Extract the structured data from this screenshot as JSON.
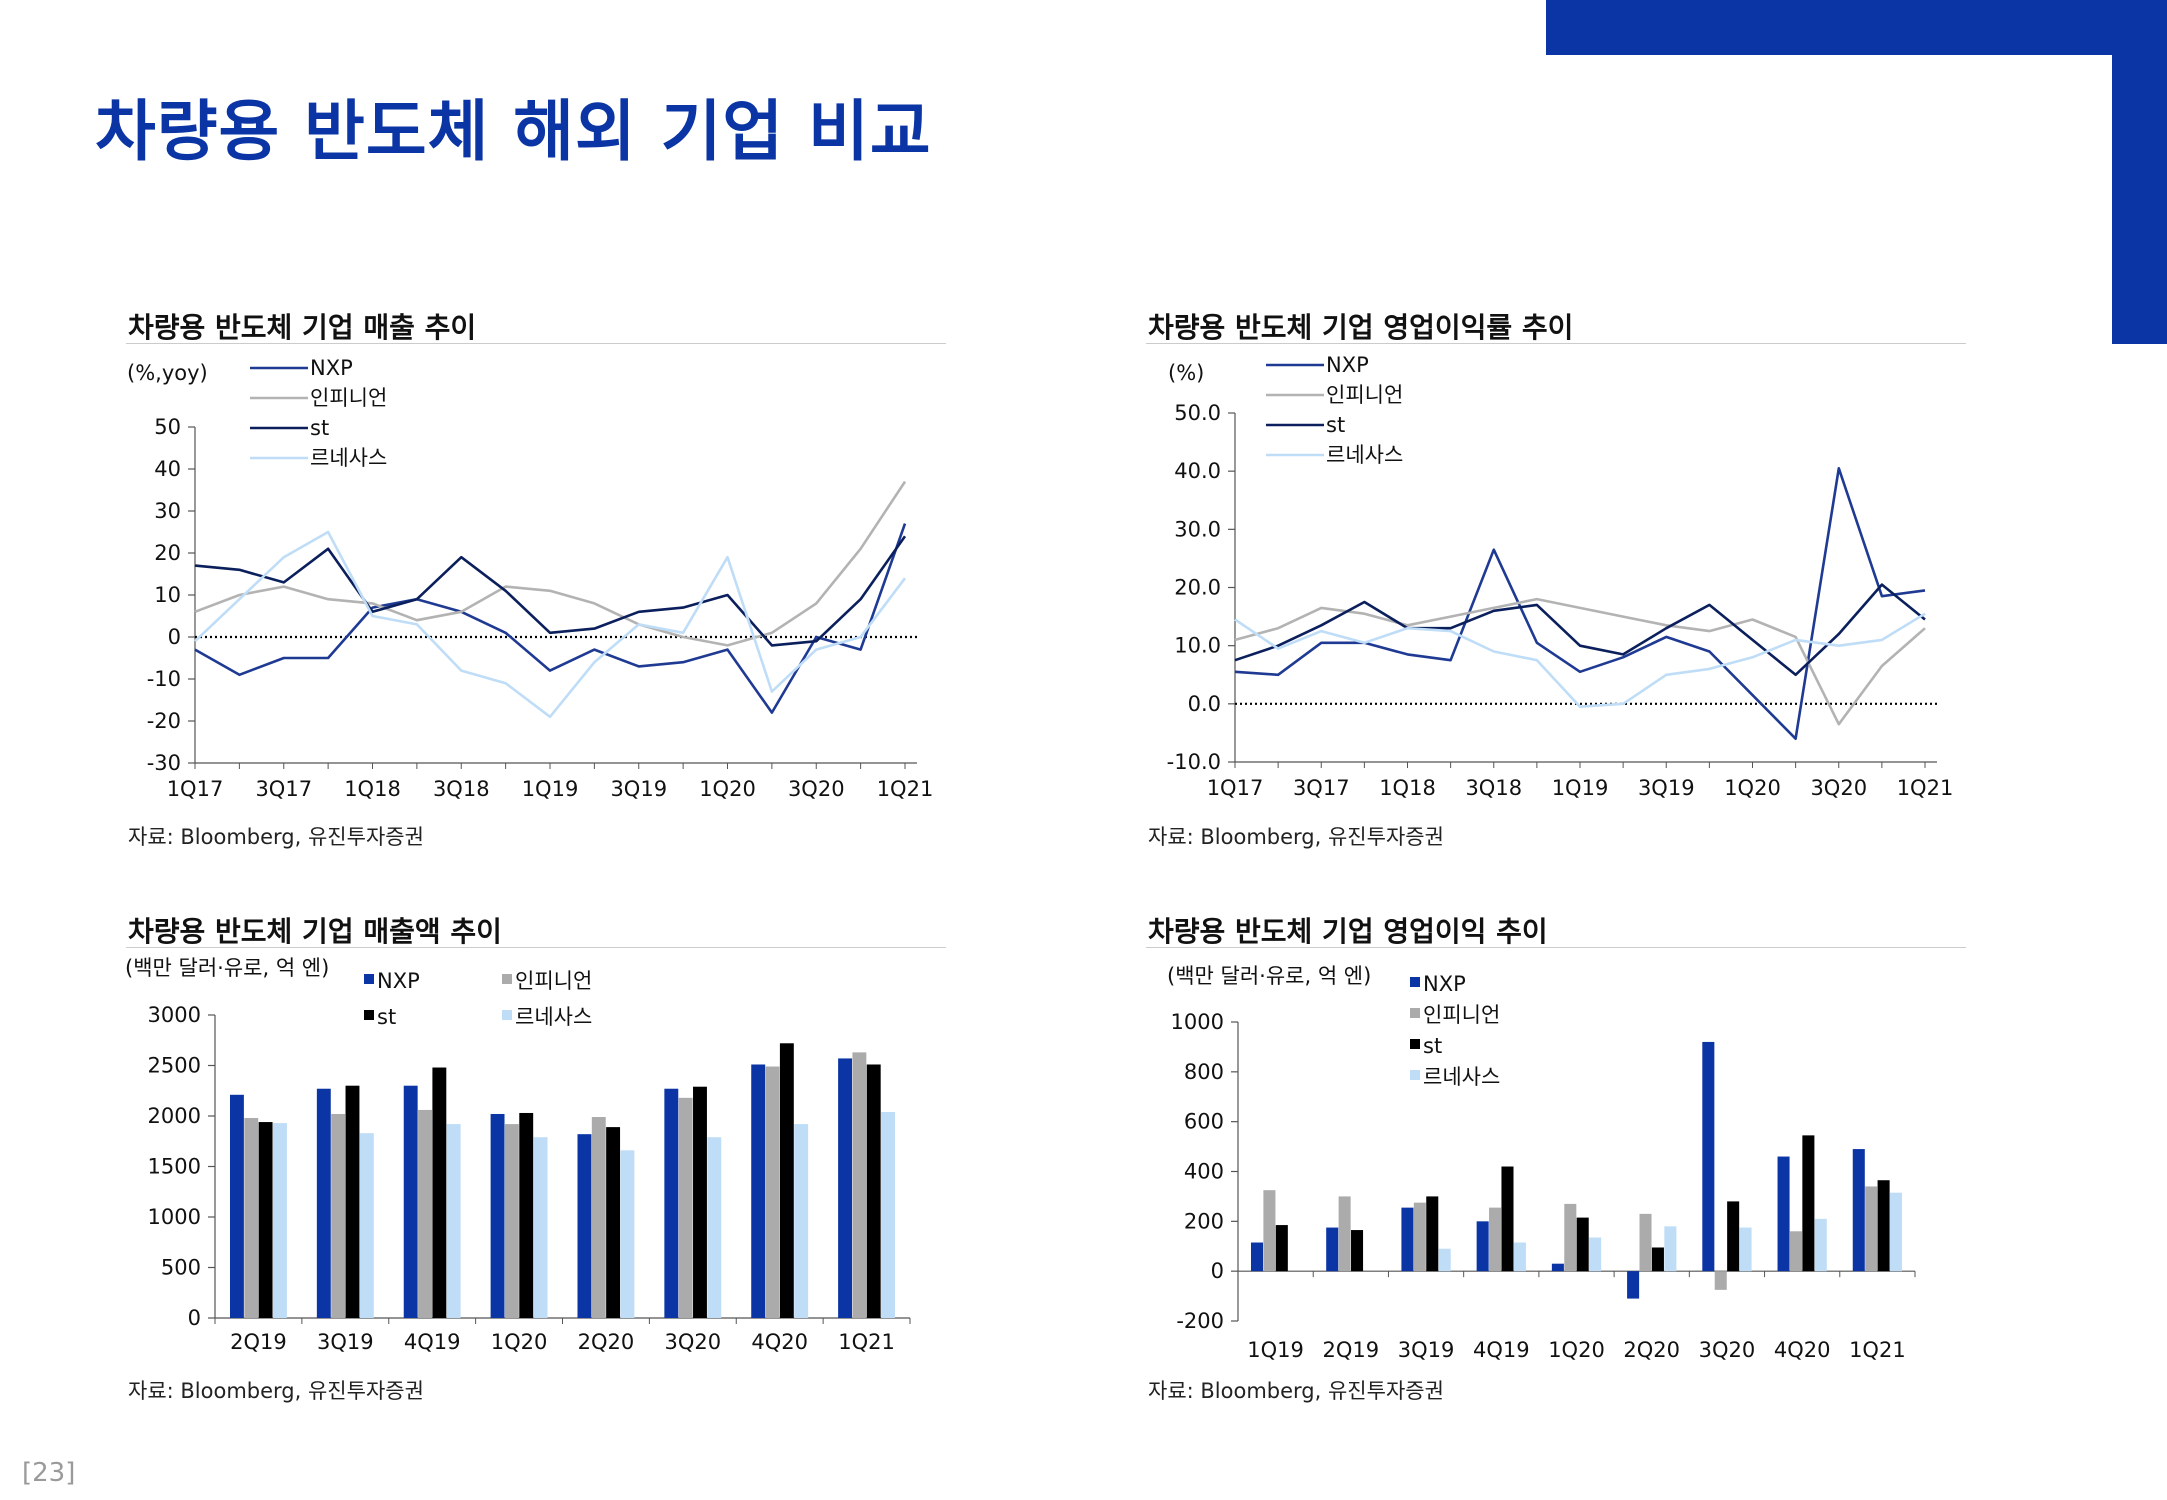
{
  "page": {
    "title": "차량용 반도체 해외 기업 비교",
    "page_number": "[23]",
    "brand_color": "#0B35A5"
  },
  "charts": {
    "c1": {
      "title": "차량용 반도체 기업 매출 추이",
      "source": "자료: Bloomberg, 유진투자증권"
    },
    "c2": {
      "title": "차량용 반도체 기업 영업이익률 추이",
      "source": "자료: Bloomberg, 유진투자증권"
    },
    "c3": {
      "title": "차량용 반도체 기업 매출액 추이",
      "source": "자료: Bloomberg, 유진투자증권"
    },
    "c4": {
      "title": "차량용 반도체 기업 영업이익 추이",
      "source": "자료: Bloomberg, 유진투자증권"
    }
  },
  "chart_data": [
    {
      "id": "c1",
      "type": "line",
      "title": "차량용 반도체 기업 매출 추이",
      "unit_label": "(%,yoy)",
      "ylim": [
        -30,
        50
      ],
      "yticks": [
        -30,
        -20,
        -10,
        0,
        10,
        20,
        30,
        40,
        50
      ],
      "x": [
        "1Q17",
        "2Q17",
        "3Q17",
        "4Q17",
        "1Q18",
        "2Q18",
        "3Q18",
        "4Q18",
        "1Q19",
        "2Q19",
        "3Q19",
        "4Q19",
        "1Q20",
        "2Q20",
        "3Q20",
        "4Q20",
        "1Q21"
      ],
      "xticks": [
        "1Q17",
        "3Q17",
        "1Q18",
        "3Q18",
        "1Q19",
        "3Q19",
        "1Q20",
        "3Q20",
        "1Q21"
      ],
      "zero_line": "dotted",
      "series": [
        {
          "name": "NXP",
          "color": "#1F3A93",
          "values": [
            -3,
            -9,
            -5,
            -5,
            7,
            9,
            6,
            1,
            -8,
            -3,
            -7,
            -6,
            -3,
            -18,
            0,
            -3,
            27
          ]
        },
        {
          "name": "인피니언",
          "color": "#B3B3B3",
          "values": [
            6,
            10,
            12,
            9,
            8,
            4,
            6,
            12,
            11,
            8,
            3,
            0,
            -2,
            1,
            8,
            21,
            37
          ]
        },
        {
          "name": "st",
          "color": "#0A1F5C",
          "values": [
            17,
            16,
            13,
            21,
            6,
            9,
            19,
            11,
            1,
            2,
            6,
            7,
            10,
            -2,
            -1,
            9,
            24
          ]
        },
        {
          "name": "르네사스",
          "color": "#BFDDF7",
          "values": [
            -1,
            9,
            19,
            25,
            5,
            3,
            -8,
            -11,
            -19,
            -6,
            3,
            1,
            19,
            -13,
            -3,
            0,
            14
          ]
        }
      ]
    },
    {
      "id": "c2",
      "type": "line",
      "title": "차량용 반도체 기업 영업이익률 추이",
      "unit_label": "(%)",
      "ylim": [
        -10,
        50
      ],
      "yticks": [
        "-10.0",
        "0.0",
        "10.0",
        "20.0",
        "30.0",
        "40.0",
        "50.0"
      ],
      "x": [
        "1Q17",
        "2Q17",
        "3Q17",
        "4Q17",
        "1Q18",
        "2Q18",
        "3Q18",
        "4Q18",
        "1Q19",
        "2Q19",
        "3Q19",
        "4Q19",
        "1Q20",
        "2Q20",
        "3Q20",
        "4Q20",
        "1Q21"
      ],
      "xticks": [
        "1Q17",
        "3Q17",
        "1Q18",
        "3Q18",
        "1Q19",
        "3Q19",
        "1Q20",
        "3Q20",
        "1Q21"
      ],
      "zero_line": "dotted",
      "series": [
        {
          "name": "NXP",
          "color": "#1F3A93",
          "values": [
            5.5,
            5,
            10.5,
            10.5,
            8.5,
            7.5,
            26.5,
            10.5,
            5.5,
            8,
            11.5,
            9,
            1.5,
            -6,
            40.5,
            18.5,
            19.5
          ]
        },
        {
          "name": "인피니언",
          "color": "#B3B3B3",
          "values": [
            11,
            13,
            16.5,
            15.5,
            13.5,
            15,
            16.5,
            18,
            16.5,
            15,
            13.5,
            12.5,
            14.5,
            11.5,
            -3.5,
            6.5,
            13
          ]
        },
        {
          "name": "st",
          "color": "#0A1F5C",
          "values": [
            7.5,
            10,
            13.5,
            17.5,
            13,
            13,
            16,
            17,
            10,
            8.5,
            13,
            17,
            11,
            5,
            12,
            20.5,
            14.5
          ]
        },
        {
          "name": "르네사스",
          "color": "#BFDDF7",
          "values": [
            14.5,
            9.5,
            12.5,
            10.5,
            13,
            12.5,
            9,
            7.5,
            -0.5,
            0,
            5,
            6,
            8,
            11,
            10,
            11,
            15.5
          ]
        }
      ]
    },
    {
      "id": "c3",
      "type": "bar",
      "title": "차량용 반도체 기업 매출액 추이",
      "unit_label": "(백만 달러·유로, 억 엔)",
      "ylim": [
        0,
        3000
      ],
      "yticks": [
        0,
        500,
        1000,
        1500,
        2000,
        2500,
        3000
      ],
      "categories": [
        "2Q19",
        "3Q19",
        "4Q19",
        "1Q20",
        "2Q20",
        "3Q20",
        "4Q20",
        "1Q21"
      ],
      "series": [
        {
          "name": "NXP",
          "color": "#0B35A5",
          "values": [
            2210,
            2270,
            2300,
            2020,
            1820,
            2270,
            2510,
            2570
          ]
        },
        {
          "name": "인피니언",
          "color": "#ABABAB",
          "values": [
            1980,
            2020,
            2060,
            1920,
            1990,
            2180,
            2490,
            2630
          ]
        },
        {
          "name": "st",
          "color": "#000000",
          "values": [
            1940,
            2300,
            2480,
            2030,
            1890,
            2290,
            2720,
            2510
          ]
        },
        {
          "name": "르네사스",
          "color": "#BFDDF7",
          "values": [
            1930,
            1830,
            1920,
            1790,
            1660,
            1790,
            1920,
            2040
          ]
        }
      ]
    },
    {
      "id": "c4",
      "type": "bar",
      "title": "차량용 반도체 기업 영업이익 추이",
      "unit_label": "(백만 달러·유로, 억 엔)",
      "ylim": [
        -200,
        1000
      ],
      "yticks": [
        -200,
        0,
        200,
        400,
        600,
        800,
        1000
      ],
      "categories": [
        "1Q19",
        "2Q19",
        "3Q19",
        "4Q19",
        "1Q20",
        "2Q20",
        "3Q20",
        "4Q20",
        "1Q21"
      ],
      "series": [
        {
          "name": "NXP",
          "color": "#0B35A5",
          "values": [
            115,
            175,
            255,
            200,
            30,
            -110,
            920,
            460,
            490
          ]
        },
        {
          "name": "인피니언",
          "color": "#ABABAB",
          "values": [
            325,
            300,
            275,
            255,
            270,
            230,
            -75,
            160,
            340
          ]
        },
        {
          "name": "st",
          "color": "#000000",
          "values": [
            185,
            165,
            300,
            420,
            215,
            95,
            280,
            545,
            365
          ]
        },
        {
          "name": "르네사스",
          "color": "#BFDDF7",
          "values": [
            0,
            0,
            90,
            115,
            135,
            180,
            175,
            210,
            315
          ]
        }
      ]
    }
  ]
}
